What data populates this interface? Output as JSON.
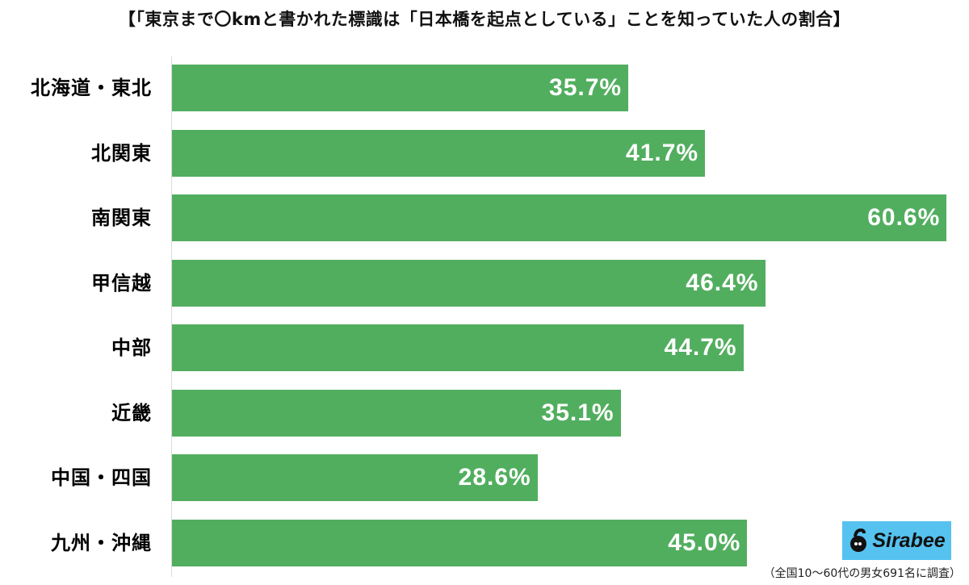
{
  "chart": {
    "title": "【「東京まで〇kmと書かれた標識は「日本橋を起点としている」ことを知っていた人の割合】",
    "footnote": "（全国10〜60代の男女691名に調査）",
    "logo_text": "Sirabee",
    "bar_color": "#52ae5f",
    "logo_bg": "#56c2ef",
    "rows": [
      {
        "label": "北海道・東北",
        "value_label": "35.7%"
      },
      {
        "label": "北関東",
        "value_label": "41.7%"
      },
      {
        "label": "南関東",
        "value_label": "60.6%"
      },
      {
        "label": "甲信越",
        "value_label": "46.4%"
      },
      {
        "label": "中部",
        "value_label": "44.7%"
      },
      {
        "label": "近畿",
        "value_label": "35.1%"
      },
      {
        "label": "中国・四国",
        "value_label": "28.6%"
      },
      {
        "label": "九州・沖縄",
        "value_label": "45.0%"
      }
    ]
  },
  "chart_data": {
    "type": "bar",
    "orientation": "horizontal",
    "title": "【「東京まで〇kmと書かれた標識は「日本橋を起点としている」ことを知っていた人の割合】",
    "categories": [
      "北海道・東北",
      "北関東",
      "南関東",
      "甲信越",
      "中部",
      "近畿",
      "中国・四国",
      "九州・沖縄"
    ],
    "values": [
      35.7,
      41.7,
      60.6,
      46.4,
      44.7,
      35.1,
      28.6,
      45.0
    ],
    "unit": "%",
    "xlabel": "",
    "ylabel": "",
    "grid": false,
    "legend": null,
    "data_labels": true,
    "note": "（全国10〜60代の男女691名に調査）",
    "source_logo": "Sirabee"
  }
}
